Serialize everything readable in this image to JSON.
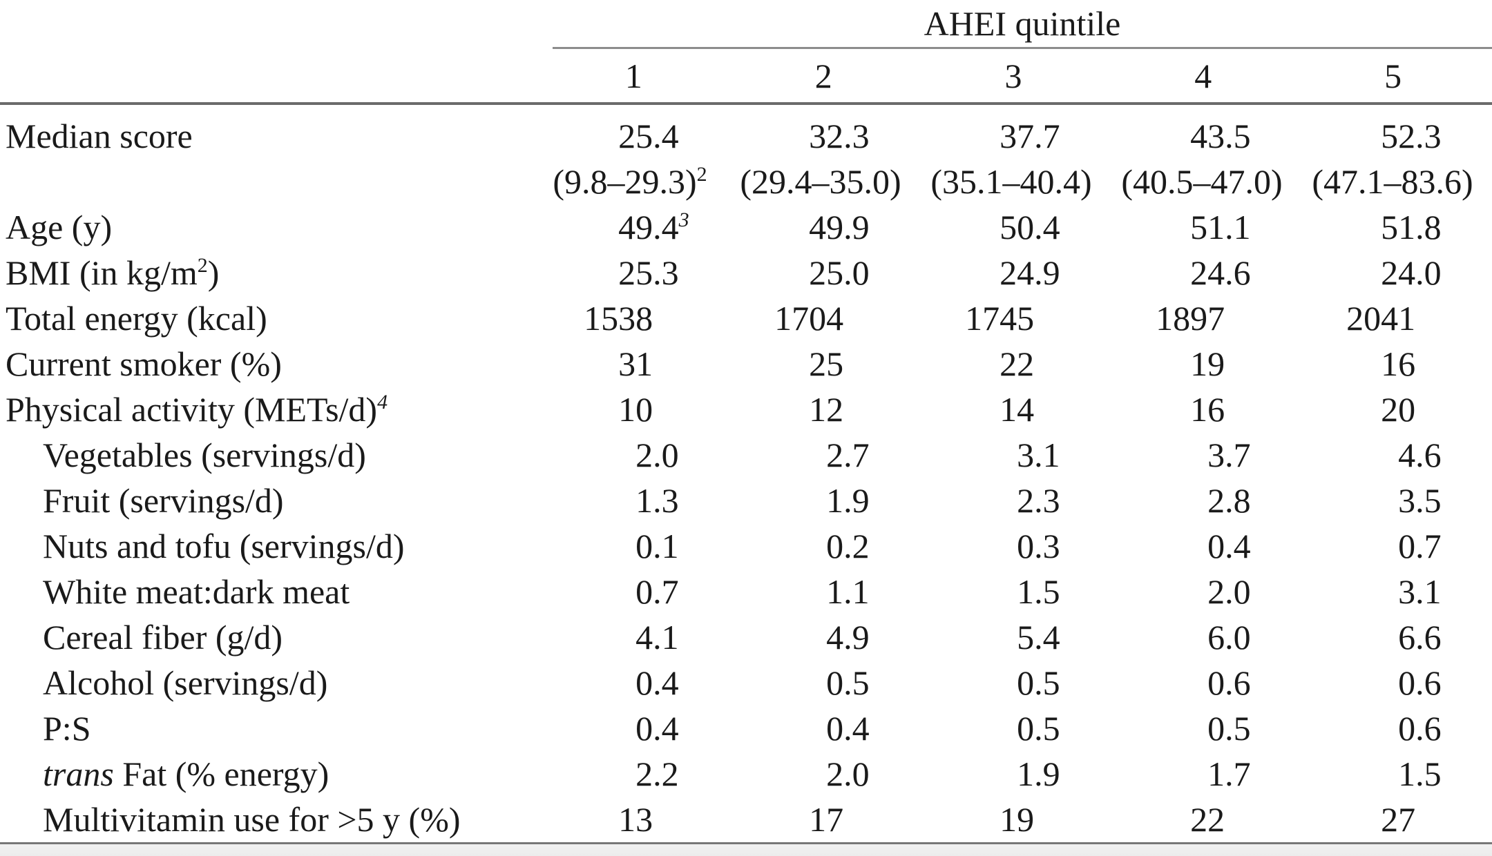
{
  "page": {
    "background_color": "#ffffff",
    "rule_color": "#6b6b6b",
    "text_color": "#1a1a1a"
  },
  "table": {
    "group_header": "AHEI quintile",
    "column_headers": [
      "1",
      "2",
      "3",
      "4",
      "5"
    ],
    "rows": [
      {
        "label": [
          {
            "t": "Median score"
          }
        ],
        "indent": false,
        "cells": [
          "25.4",
          "32.3",
          "37.7",
          "43.5",
          "52.3"
        ]
      },
      {
        "label": [],
        "indent": false,
        "align": "center",
        "cells": [
          [
            {
              "t": "(9.8–29.3)"
            },
            {
              "t": "2",
              "sup": true
            }
          ],
          [
            {
              "t": "(29.4–35.0)"
            }
          ],
          [
            {
              "t": "(35.1–40.4)"
            }
          ],
          [
            {
              "t": "(40.5–47.0)"
            }
          ],
          [
            {
              "t": "(47.1–83.6)"
            }
          ]
        ]
      },
      {
        "label": [
          {
            "t": "Age (y)"
          }
        ],
        "indent": false,
        "cells": [
          [
            {
              "t": "49.4"
            },
            {
              "t": "3",
              "sup": true,
              "i": true
            }
          ],
          "49.9",
          "50.4",
          "51.1",
          "51.8"
        ]
      },
      {
        "label": [
          {
            "t": "BMI (in kg/m"
          },
          {
            "t": "2",
            "sup": true
          },
          {
            "t": ")"
          }
        ],
        "indent": false,
        "cells": [
          "25.3",
          "25.0",
          "24.9",
          "24.6",
          "24.0"
        ]
      },
      {
        "label": [
          {
            "t": "Total energy (kcal)"
          }
        ],
        "indent": false,
        "cells": [
          "1538",
          "1704",
          "1745",
          "1897",
          "2041"
        ]
      },
      {
        "label": [
          {
            "t": "Current smoker (%)"
          }
        ],
        "indent": false,
        "cells": [
          "31",
          "25",
          "22",
          "19",
          "16"
        ]
      },
      {
        "label": [
          {
            "t": "Physical activity (METs/d)"
          },
          {
            "t": "4",
            "sup": true,
            "i": true
          }
        ],
        "indent": false,
        "cells": [
          "10",
          "12",
          "14",
          "16",
          "20"
        ]
      },
      {
        "label": [
          {
            "t": "Vegetables (servings/d)"
          }
        ],
        "indent": true,
        "cells": [
          "2.0",
          "2.7",
          "3.1",
          "3.7",
          "4.6"
        ]
      },
      {
        "label": [
          {
            "t": "Fruit (servings/d)"
          }
        ],
        "indent": true,
        "cells": [
          "1.3",
          "1.9",
          "2.3",
          "2.8",
          "3.5"
        ]
      },
      {
        "label": [
          {
            "t": "Nuts and tofu (servings/d)"
          }
        ],
        "indent": true,
        "cells": [
          "0.1",
          "0.2",
          "0.3",
          "0.4",
          "0.7"
        ]
      },
      {
        "label": [
          {
            "t": "White meat:dark meat"
          }
        ],
        "indent": true,
        "cells": [
          "0.7",
          "1.1",
          "1.5",
          "2.0",
          "3.1"
        ]
      },
      {
        "label": [
          {
            "t": "Cereal fiber (g/d)"
          }
        ],
        "indent": true,
        "cells": [
          "4.1",
          "4.9",
          "5.4",
          "6.0",
          "6.6"
        ]
      },
      {
        "label": [
          {
            "t": "Alcohol (servings/d)"
          }
        ],
        "indent": true,
        "cells": [
          "0.4",
          "0.5",
          "0.5",
          "0.6",
          "0.6"
        ]
      },
      {
        "label": [
          {
            "t": "P:S"
          }
        ],
        "indent": true,
        "cells": [
          "0.4",
          "0.4",
          "0.5",
          "0.5",
          "0.6"
        ]
      },
      {
        "label": [
          {
            "t": "trans",
            "i": true
          },
          {
            "t": " Fat (% energy)"
          }
        ],
        "indent": true,
        "cells": [
          "2.2",
          "2.0",
          "1.9",
          "1.7",
          "1.5"
        ]
      },
      {
        "label": [
          {
            "t": "Multivitamin use for >5 y (%)"
          }
        ],
        "indent": true,
        "cells": [
          "13",
          "17",
          "19",
          "22",
          "27"
        ]
      }
    ]
  }
}
